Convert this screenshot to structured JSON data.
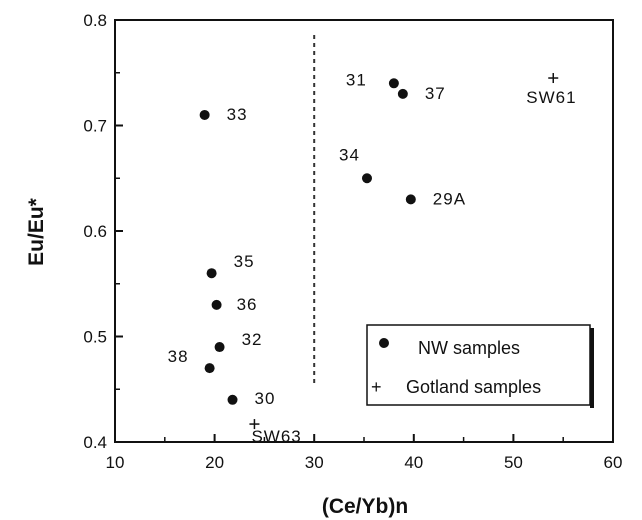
{
  "chart_data": {
    "type": "scatter",
    "xlabel": "(Ce/Yb)n",
    "ylabel": "Eu/Eu*",
    "xlim": [
      10,
      60
    ],
    "ylim": [
      0.4,
      0.8
    ],
    "xticks": [
      10,
      20,
      30,
      40,
      50,
      60
    ],
    "yticks": [
      0.4,
      0.5,
      0.6,
      0.7,
      0.8
    ],
    "ytick_labels": [
      "0.4",
      "0.5",
      "0.6",
      "0.7",
      "0.8"
    ],
    "grid": false,
    "divider_x": 30,
    "legend": {
      "placement": "bottom-right",
      "entries": [
        {
          "marker": "dot",
          "label": "NW samples"
        },
        {
          "marker": "plus",
          "label": "Gotland samples"
        }
      ]
    },
    "series": [
      {
        "name": "NW samples",
        "marker": "dot",
        "points": [
          {
            "x": 19.0,
            "y": 0.71,
            "label": "33"
          },
          {
            "x": 19.7,
            "y": 0.56,
            "label": "35"
          },
          {
            "x": 20.2,
            "y": 0.53,
            "label": "36"
          },
          {
            "x": 20.5,
            "y": 0.49,
            "label": "32"
          },
          {
            "x": 19.5,
            "y": 0.47,
            "label": "38"
          },
          {
            "x": 21.8,
            "y": 0.44,
            "label": "30"
          },
          {
            "x": 38.0,
            "y": 0.74,
            "label": "31"
          },
          {
            "x": 38.9,
            "y": 0.73,
            "label": "37"
          },
          {
            "x": 35.3,
            "y": 0.65,
            "label": "34"
          },
          {
            "x": 39.7,
            "y": 0.63,
            "label": "29A"
          }
        ]
      },
      {
        "name": "Gotland samples",
        "marker": "plus",
        "points": [
          {
            "x": 54.0,
            "y": 0.745,
            "label": "SW61"
          },
          {
            "x": 24.0,
            "y": 0.417,
            "label": "SW63"
          }
        ]
      }
    ]
  }
}
